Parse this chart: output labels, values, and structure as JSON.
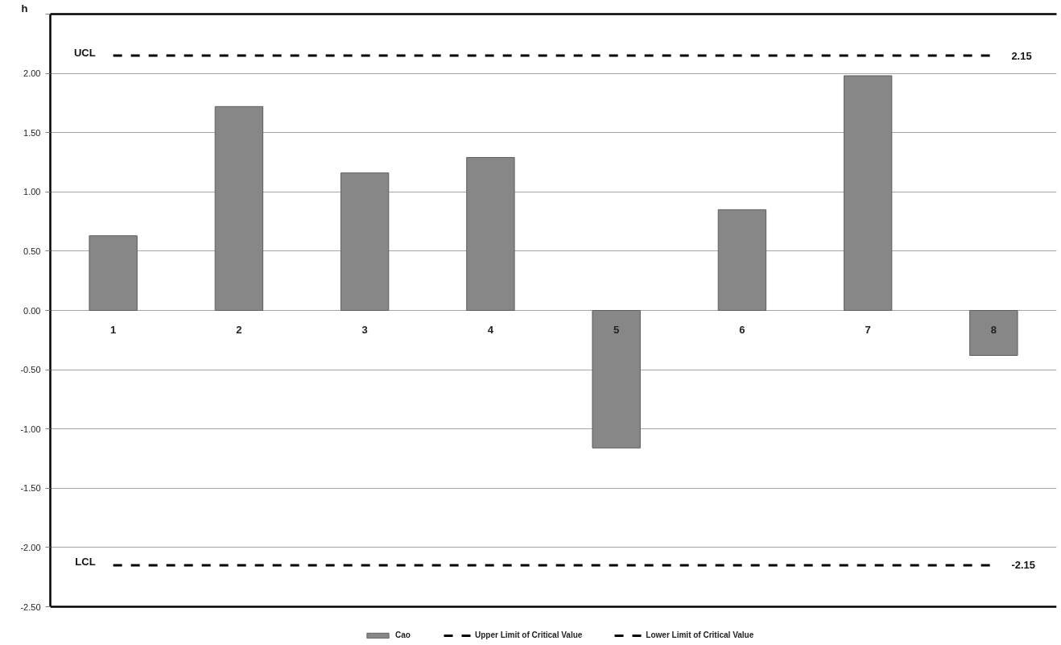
{
  "chart_data": {
    "type": "bar",
    "ylabel": "h",
    "categories": [
      "1",
      "2",
      "3",
      "4",
      "5",
      "6",
      "7",
      "8"
    ],
    "series": [
      {
        "name": "Cao",
        "color": "#878787",
        "values": [
          0.63,
          1.72,
          1.16,
          1.29,
          -1.16,
          0.85,
          1.98,
          -0.38
        ]
      },
      {
        "name": "Upper Limit of Critical Value",
        "type": "line",
        "color": "#000000",
        "line_style": "dashed",
        "values": [
          2.15,
          2.15,
          2.15,
          2.15,
          2.15,
          2.15,
          2.15,
          2.15
        ],
        "value_labels": [
          null,
          null,
          null,
          null,
          null,
          null,
          null,
          "2.15"
        ]
      },
      {
        "name": "Lower Limit of Critical Value",
        "type": "line",
        "color": "#000000",
        "line_style": "dashed",
        "values": [
          -2.15,
          -2.15,
          -2.15,
          -2.15,
          -2.15,
          -2.15,
          -2.15,
          -2.15
        ],
        "value_labels": [
          null,
          null,
          null,
          null,
          null,
          null,
          null,
          "-2.15"
        ]
      }
    ],
    "annotations": [
      {
        "text": "UCL",
        "x": "1",
        "y": 2.15
      },
      {
        "text": "LCL",
        "x": "1",
        "y": -2.15
      }
    ],
    "ylim": [
      -2.5,
      2.5
    ],
    "yticks": [
      {
        "value": -2.5,
        "label": "-2.50"
      },
      {
        "value": -2,
        "label": "-2.00"
      },
      {
        "value": -1.5,
        "label": "-1.50"
      },
      {
        "value": -1,
        "label": "-1.00"
      },
      {
        "value": -0.5,
        "label": "-0.50"
      },
      {
        "value": 0,
        "label": "0.00"
      },
      {
        "value": 0.5,
        "label": "0.50"
      },
      {
        "value": 1,
        "label": "1.00"
      },
      {
        "value": 1.5,
        "label": "1.50"
      },
      {
        "value": 2,
        "label": "2.00"
      },
      {
        "value": 2.5,
        "label": null
      }
    ],
    "grid": "y",
    "legend": "bottom"
  }
}
